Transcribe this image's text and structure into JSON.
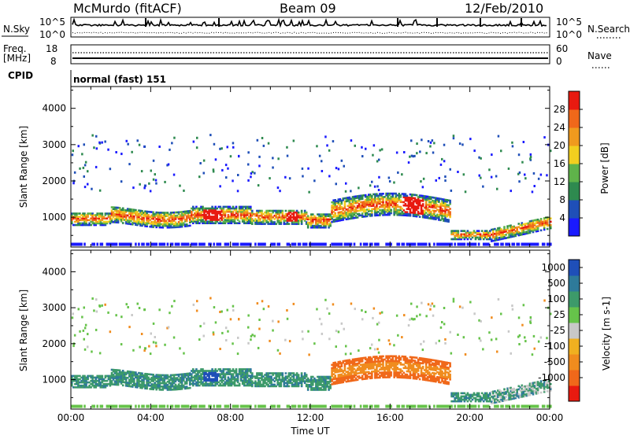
{
  "header": {
    "site": "McMurdo (fitACF)",
    "beam": "Beam 09",
    "date": "12/Feb/2010"
  },
  "noise_panel": {
    "left_label": "N.Sky",
    "right_label": "N.Search",
    "left_ticks": [
      "10^5",
      "10^0"
    ],
    "right_ticks": [
      "10^5",
      "10^0"
    ]
  },
  "freq_panel": {
    "left_label_1": "Freq.",
    "left_label_2": "[MHz]",
    "right_label": "Nave",
    "left_ticks": [
      "18",
      "8"
    ],
    "right_ticks": [
      "60",
      "0"
    ]
  },
  "cpid": {
    "label": "CPID",
    "value": "normal (fast) 151"
  },
  "colors": {
    "power_scale": [
      "#1a1aff",
      "#1f4fb8",
      "#2e8a4f",
      "#5fb34a",
      "#f2cf1f",
      "#f09a1e",
      "#f0681a",
      "#e81a10"
    ],
    "velocity_scale": [
      "#1f4fb8",
      "#2e7a9a",
      "#3d9a6a",
      "#66c34a",
      "#c8c8c8",
      "#f0b020",
      "#f08c1e",
      "#f0681a",
      "#e81a10"
    ]
  },
  "chart_data": [
    {
      "type": "heatmap",
      "name": "Power",
      "xlabel": "Time UT",
      "ylabel": "Slant Range [km]",
      "xlim": [
        "00:00",
        "00:00"
      ],
      "x_ticks": [
        "00:00",
        "04:00",
        "08:00",
        "12:00",
        "16:00",
        "20:00",
        "00:00"
      ],
      "ylim": [
        180,
        4600
      ],
      "y_ticks": [
        1000,
        2000,
        3000,
        4000
      ],
      "colorbar": {
        "label": "Power [dB]",
        "ticks": [
          "4",
          "8",
          "12",
          "16",
          "20",
          "24",
          "28"
        ],
        "range": [
          0,
          32
        ]
      }
    },
    {
      "type": "heatmap",
      "name": "Velocity",
      "xlabel": "Time UT",
      "ylabel": "Slant Range [km]",
      "xlim": [
        "00:00",
        "00:00"
      ],
      "x_ticks": [
        "00:00",
        "04:00",
        "08:00",
        "12:00",
        "16:00",
        "20:00",
        "00:00"
      ],
      "ylim": [
        180,
        4600
      ],
      "y_ticks": [
        1000,
        2000,
        3000,
        4000
      ],
      "colorbar": {
        "label": "Velocity [m s-1]",
        "ticks": [
          "1000",
          "500",
          "100",
          "25",
          "-25",
          "-100",
          "-500",
          "-1000"
        ]
      }
    }
  ]
}
